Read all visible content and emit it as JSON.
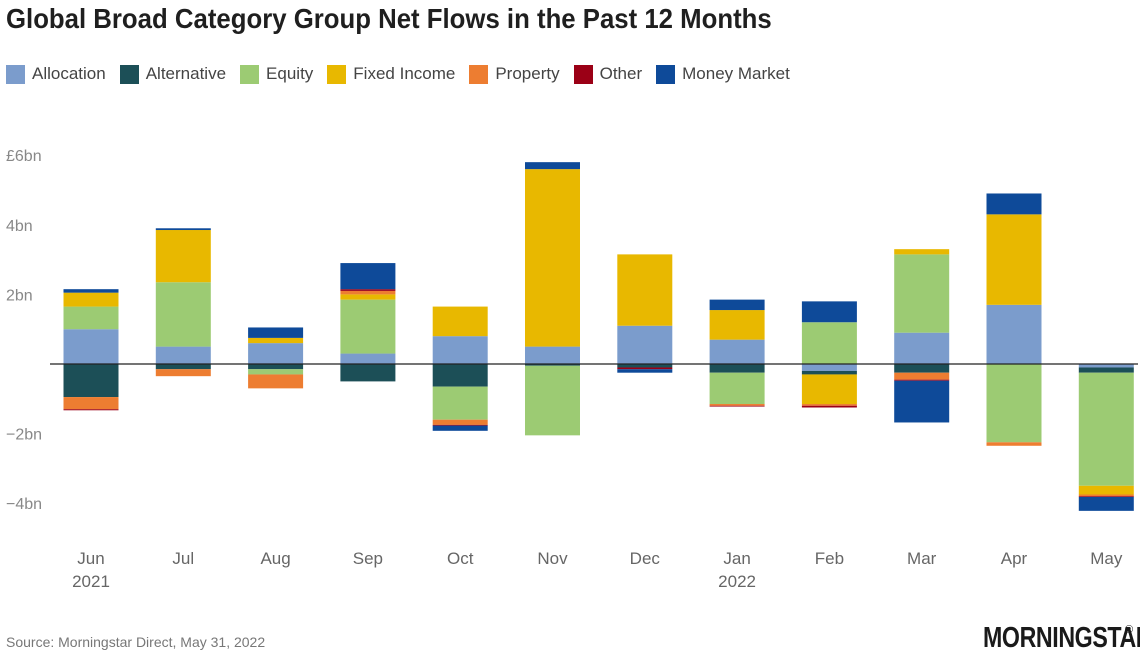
{
  "title": "Global Broad Category Group Net Flows in the Past 12 Months",
  "source": "Source: Morningstar Direct, May 31, 2022",
  "logo": {
    "text": "MORNINGSTAR",
    "registered": "®"
  },
  "legend": [
    {
      "name": "Allocation",
      "color": "#7b9ccc"
    },
    {
      "name": "Alternative",
      "color": "#1c4f57"
    },
    {
      "name": "Equity",
      "color": "#9ccb73"
    },
    {
      "name": "Fixed Income",
      "color": "#e8b800"
    },
    {
      "name": "Property",
      "color": "#ed7d31"
    },
    {
      "name": "Other",
      "color": "#9b0016"
    },
    {
      "name": "Money Market",
      "color": "#0e4a99"
    }
  ],
  "chart_data": {
    "type": "bar",
    "stacked": true,
    "title": "Global Broad Category Group Net Flows in the Past 12 Months",
    "xlabel": "",
    "ylabel": "",
    "categories": [
      "Jun",
      "Jul",
      "Aug",
      "Sep",
      "Oct",
      "Nov",
      "Dec",
      "Jan",
      "Feb",
      "Mar",
      "Apr",
      "May"
    ],
    "category_sublabels": [
      "2021",
      "",
      "",
      "",
      "",
      "",
      "",
      "2022",
      "",
      "",
      "",
      ""
    ],
    "yticks": [
      6,
      4,
      2,
      0,
      -2,
      -4
    ],
    "ytick_labels": [
      "£6bn",
      "4bn",
      "2bn",
      "",
      "−2bn",
      "−4bn"
    ],
    "ylim": [
      -5,
      6.5
    ],
    "unit": "£bn",
    "series": [
      {
        "name": "Allocation",
        "color": "#7b9ccc",
        "values": [
          1.0,
          0.5,
          0.6,
          0.3,
          0.8,
          0.5,
          1.1,
          0.7,
          -0.2,
          0.9,
          1.7,
          -0.1
        ]
      },
      {
        "name": "Alternative",
        "color": "#1c4f57",
        "values": [
          -0.95,
          -0.15,
          -0.15,
          -0.5,
          -0.65,
          -0.05,
          -0.1,
          -0.25,
          -0.1,
          -0.25,
          0.0,
          -0.15
        ]
      },
      {
        "name": "Equity",
        "color": "#9ccb73",
        "values": [
          0.65,
          1.85,
          -0.15,
          1.55,
          -0.95,
          -2.0,
          0.0,
          -0.9,
          1.2,
          2.25,
          -2.25,
          -3.25
        ]
      },
      {
        "name": "Fixed Income",
        "color": "#e8b800",
        "values": [
          0.4,
          1.5,
          0.15,
          0.15,
          0.85,
          5.1,
          2.05,
          0.85,
          -0.85,
          0.15,
          2.6,
          -0.25
        ]
      },
      {
        "name": "Property",
        "color": "#ed7d31",
        "values": [
          -0.35,
          -0.2,
          -0.4,
          0.1,
          -0.15,
          0.0,
          0.0,
          -0.05,
          -0.05,
          -0.2,
          -0.1,
          -0.05
        ]
      },
      {
        "name": "Other",
        "color": "#9b0016",
        "values": [
          -0.03,
          0.0,
          0.0,
          0.05,
          -0.02,
          0.0,
          -0.05,
          -0.02,
          -0.05,
          -0.03,
          0.0,
          -0.02
        ]
      },
      {
        "name": "Money Market",
        "color": "#0e4a99",
        "values": [
          0.1,
          0.05,
          0.3,
          0.75,
          -0.15,
          0.2,
          -0.1,
          0.3,
          0.6,
          -1.2,
          0.6,
          -0.4
        ]
      }
    ],
    "grid": false,
    "legend_position": "top-left"
  }
}
